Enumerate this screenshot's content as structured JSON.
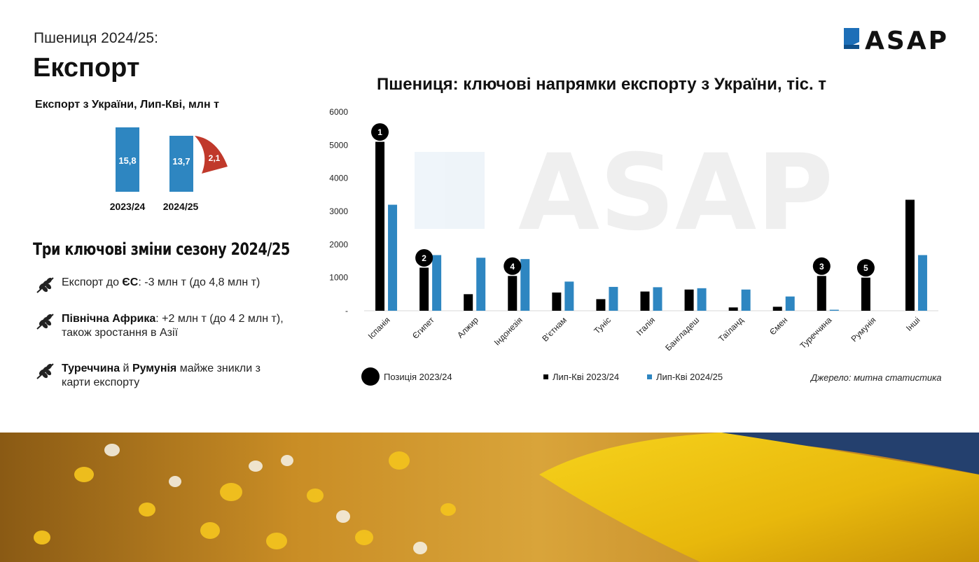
{
  "header": {
    "subtitle": "Пшениця 2024/25:",
    "title": "Експорт",
    "logo_text": "ASAP"
  },
  "summary": {
    "title": "Експорт з України, Лип-Кві, млн т",
    "bars": [
      {
        "year": "2023/24",
        "value": 15.8,
        "label": "15,8"
      },
      {
        "year": "2024/25",
        "value": 13.7,
        "label": "13,7"
      }
    ],
    "decline_label": "2,1"
  },
  "changes": {
    "title": "Три ключові зміни сезону 2024/25",
    "items": [
      {
        "icon": "wheat-icon",
        "bold": "ЄС",
        "prefix": "Експорт до ",
        "text": ": -3 млн т (до 4,8 млн т)"
      },
      {
        "icon": "wheat-icon",
        "bold": "Північна Африка",
        "prefix": "",
        "text": ": +2 млн т (до 4 2 млн т), також зростання в Азії"
      },
      {
        "icon": "wheat-icon",
        "bold": "Туреччина",
        "mid": " й ",
        "bold2": "Румунія",
        "text": " майже зникли з карти експорту"
      }
    ]
  },
  "legend": {
    "position_label": "Позиція 2023/24",
    "series_2324": "Лип-Кві 2023/24",
    "series_2425": "Лип-Кві 2024/25"
  },
  "source": "Джерело: митна статистика",
  "colors": {
    "blue": "#2e86c1",
    "black": "#000000",
    "red": "#c0392b",
    "logo_blue": "#1d6fb8"
  },
  "chart_data": {
    "type": "bar",
    "title": "Пшениця: ключові напрямки експорту з України, тіс. т",
    "categories": [
      "Іспанія",
      "Єгипет",
      "Алжир",
      "Індонезія",
      "В'єтнам",
      "Туніс",
      "Італія",
      "Бангладеш",
      "Таїланд",
      "Ємен",
      "Туреччина",
      "Румунія",
      "Інші"
    ],
    "series": [
      {
        "name": "Лип-Кві 2023/24",
        "color": "#000000",
        "values": [
          5100,
          1300,
          500,
          1050,
          550,
          350,
          580,
          640,
          100,
          120,
          1050,
          1000,
          3350
        ]
      },
      {
        "name": "Лип-Кві 2024/25",
        "color": "#2e86c1",
        "values": [
          3200,
          1680,
          1600,
          1560,
          880,
          720,
          710,
          680,
          640,
          430,
          30,
          0,
          1680
        ]
      }
    ],
    "positions_2324": [
      {
        "category": "Іспанія",
        "rank": "1"
      },
      {
        "category": "Єгипет",
        "rank": "2"
      },
      {
        "category": "Індонезія",
        "rank": "4"
      },
      {
        "category": "Туреччина",
        "rank": "3"
      },
      {
        "category": "Румунія",
        "rank": "5"
      }
    ],
    "ylim": [
      0,
      6000
    ],
    "yticks": [
      "-",
      "1000",
      "2000",
      "3000",
      "4000",
      "5000",
      "6000"
    ],
    "grid": false
  }
}
